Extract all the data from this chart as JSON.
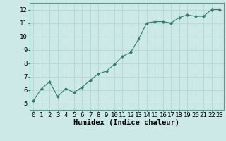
{
  "x": [
    0,
    1,
    2,
    3,
    4,
    5,
    6,
    7,
    8,
    9,
    10,
    11,
    12,
    13,
    14,
    15,
    16,
    17,
    18,
    19,
    20,
    21,
    22,
    23
  ],
  "y": [
    5.2,
    6.1,
    6.6,
    5.5,
    6.1,
    5.8,
    6.2,
    6.7,
    7.2,
    7.4,
    7.9,
    8.5,
    8.8,
    9.8,
    11.0,
    11.1,
    11.1,
    11.0,
    11.4,
    11.6,
    11.5,
    11.5,
    12.0,
    12.0
  ],
  "xlabel": "Humidex (Indice chaleur)",
  "ylim": [
    4.5,
    12.5
  ],
  "xlim": [
    -0.5,
    23.5
  ],
  "yticks": [
    5,
    6,
    7,
    8,
    9,
    10,
    11,
    12
  ],
  "xticks": [
    0,
    1,
    2,
    3,
    4,
    5,
    6,
    7,
    8,
    9,
    10,
    11,
    12,
    13,
    14,
    15,
    16,
    17,
    18,
    19,
    20,
    21,
    22,
    23
  ],
  "line_color": "#2e7d6e",
  "marker_color": "#2e7d6e",
  "bg_color": "#cce9e7",
  "grid_color": "#b0d4d1",
  "axes_bg": "#cce9e7",
  "tick_fontsize": 6.5,
  "xlabel_fontsize": 7.5
}
